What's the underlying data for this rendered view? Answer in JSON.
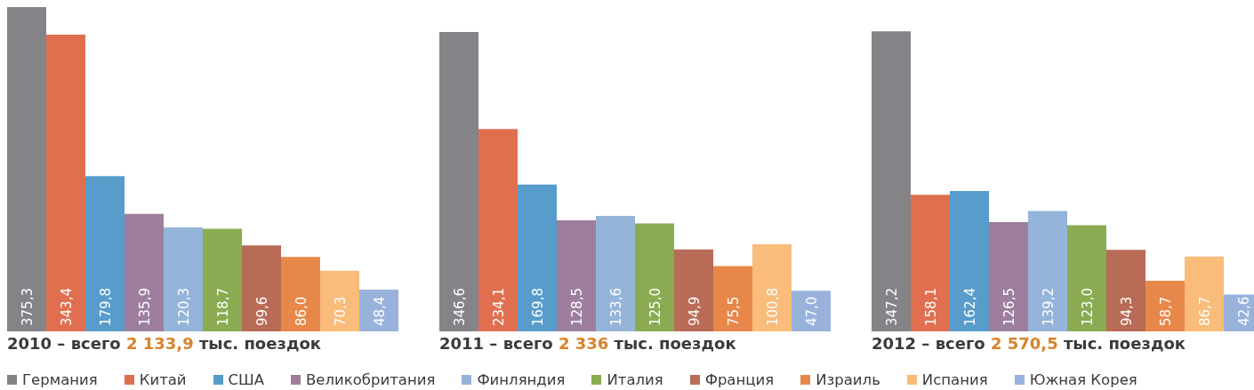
{
  "chart_data": [
    {
      "type": "bar",
      "title": "2010 – всего 2 133,9 тыс. поездок",
      "categories": [
        null
      ],
      "ylim": [
        0,
        375.3
      ],
      "legend": "bottom",
      "series": [
        {
          "name": "Германия",
          "color": "#838388",
          "values": [
            375.3
          ],
          "value_labels": [
            "375,3"
          ]
        },
        {
          "name": "Китай",
          "color": "#e06f50",
          "values": [
            343.4
          ],
          "value_labels": [
            "343,4"
          ]
        },
        {
          "name": "США",
          "color": "#579ccb",
          "values": [
            179.8
          ],
          "value_labels": [
            "179,8"
          ]
        },
        {
          "name": "Великобритания",
          "color": "#9e7e9c",
          "values": [
            135.9
          ],
          "value_labels": [
            "135,9"
          ]
        },
        {
          "name": "Финляндия",
          "color": "#94b4da",
          "values": [
            120.3
          ],
          "value_labels": [
            "120,3"
          ]
        },
        {
          "name": "Италия",
          "color": "#8aab52",
          "values": [
            118.7
          ],
          "value_labels": [
            "118,7"
          ]
        },
        {
          "name": "Франция",
          "color": "#b86b56",
          "values": [
            99.6
          ],
          "value_labels": [
            "99,6"
          ]
        },
        {
          "name": "Израиль",
          "color": "#e8874a",
          "values": [
            86.0
          ],
          "value_labels": [
            "86,0"
          ]
        },
        {
          "name": "Испания",
          "color": "#f9bc7b",
          "values": [
            70.3
          ],
          "value_labels": [
            "70,3"
          ]
        },
        {
          "name": "Южная Корея",
          "color": "#98b2dc",
          "values": [
            48.4
          ],
          "value_labels": [
            "48,4"
          ]
        }
      ]
    },
    {
      "type": "bar",
      "title": "2011 – всего 2 336 тыс. поездок",
      "categories": [
        null
      ],
      "series": [
        {
          "color": "#838388",
          "values": [
            346.6
          ],
          "value_labels": [
            "346,6"
          ]
        },
        {
          "color": "#e06f50",
          "values": [
            234.1
          ],
          "value_labels": [
            "234,1"
          ]
        },
        {
          "color": "#579ccb",
          "values": [
            169.8
          ],
          "value_labels": [
            "169,8"
          ]
        },
        {
          "color": "#9e7e9c",
          "values": [
            128.5
          ],
          "value_labels": [
            "128,5"
          ]
        },
        {
          "color": "#94b4da",
          "values": [
            133.6
          ],
          "value_labels": [
            "133,6"
          ]
        },
        {
          "color": "#8aab52",
          "values": [
            125.0
          ],
          "value_labels": [
            "125,0"
          ]
        },
        {
          "color": "#b86b56",
          "values": [
            94.9
          ],
          "value_labels": [
            "94,9"
          ]
        },
        {
          "color": "#e8874a",
          "values": [
            75.5
          ],
          "value_labels": [
            "75,5"
          ]
        },
        {
          "color": "#f9bc7b",
          "values": [
            100.8
          ],
          "value_labels": [
            "100,8"
          ]
        },
        {
          "color": "#98b2dc",
          "values": [
            47.0
          ],
          "value_labels": [
            "47,0"
          ]
        }
      ]
    },
    {
      "type": "bar",
      "title": "2012 – всего 2 570,5 тыс. поездок",
      "categories": [
        null
      ],
      "series": [
        {
          "color": "#838388",
          "values": [
            347.2
          ],
          "value_labels": [
            "347,2"
          ]
        },
        {
          "color": "#e06f50",
          "values": [
            158.1
          ],
          "value_labels": [
            "158,1"
          ]
        },
        {
          "color": "#579ccb",
          "values": [
            162.4
          ],
          "value_labels": [
            "162,4"
          ]
        },
        {
          "color": "#9e7e9c",
          "values": [
            126.5
          ],
          "value_labels": [
            "126,5"
          ]
        },
        {
          "color": "#94b4da",
          "values": [
            139.2
          ],
          "value_labels": [
            "139,2"
          ]
        },
        {
          "color": "#8aab52",
          "values": [
            123.0
          ],
          "value_labels": [
            "123,0"
          ]
        },
        {
          "color": "#b86b56",
          "values": [
            94.3
          ],
          "value_labels": [
            "94,3"
          ]
        },
        {
          "color": "#e8874a",
          "values": [
            58.7
          ],
          "value_labels": [
            "58,7"
          ]
        },
        {
          "color": "#f9bc7b",
          "values": [
            86.7
          ],
          "value_labels": [
            "86,7"
          ]
        },
        {
          "color": "#98b2dc",
          "values": [
            42.6
          ],
          "value_labels": [
            "42,6"
          ]
        }
      ]
    }
  ]
}
